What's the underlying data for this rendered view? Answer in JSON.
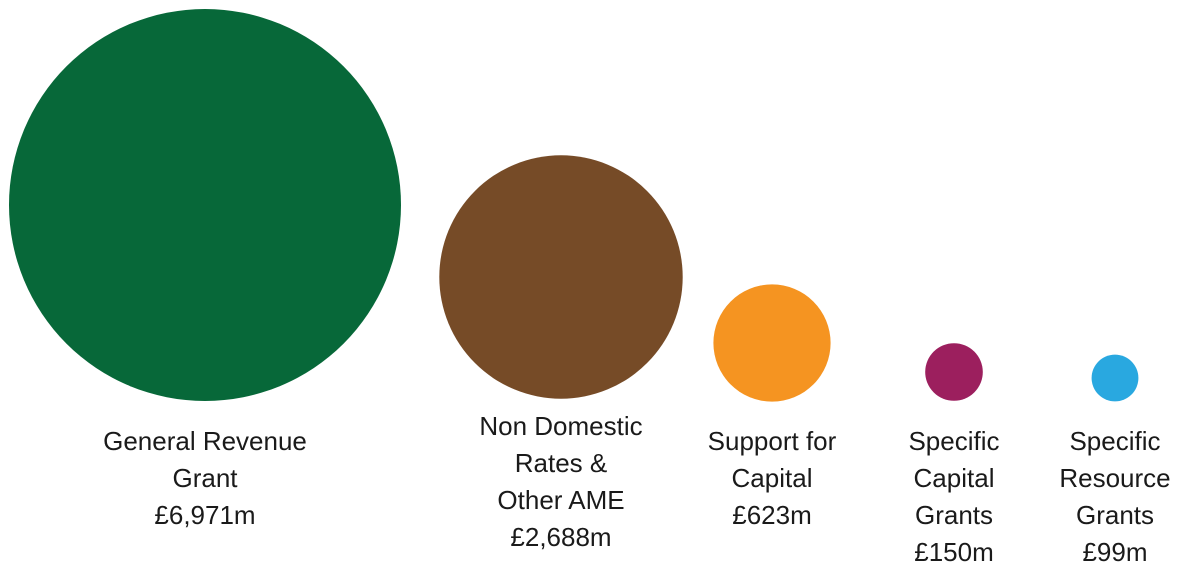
{
  "chart_data": {
    "type": "bubble",
    "title": "",
    "unit": "£m",
    "series": [
      {
        "name": "General Revenue Grant",
        "label_lines": [
          "General Revenue",
          "Grant"
        ],
        "value": 6971,
        "value_label": "£6,971m",
        "color": "#076839"
      },
      {
        "name": "Non Domestic Rates & Other AME",
        "label_lines": [
          "Non Domestic",
          "Rates &",
          "Other AME"
        ],
        "value": 2688,
        "value_label": "£2,688m",
        "color": "#764B27"
      },
      {
        "name": "Support for Capital",
        "label_lines": [
          "Support for",
          "Capital"
        ],
        "value": 623,
        "value_label": "£623m",
        "color": "#F59421"
      },
      {
        "name": "Specific Capital Grants",
        "label_lines": [
          "Specific",
          "Capital",
          "Grants"
        ],
        "value": 150,
        "value_label": "£150m",
        "color": "#9C1F5E"
      },
      {
        "name": "Specific Resource Grants",
        "label_lines": [
          "Specific",
          "Resource",
          "Grants"
        ],
        "value": 99,
        "value_label": "£99m",
        "color": "#29A8E0"
      }
    ]
  }
}
